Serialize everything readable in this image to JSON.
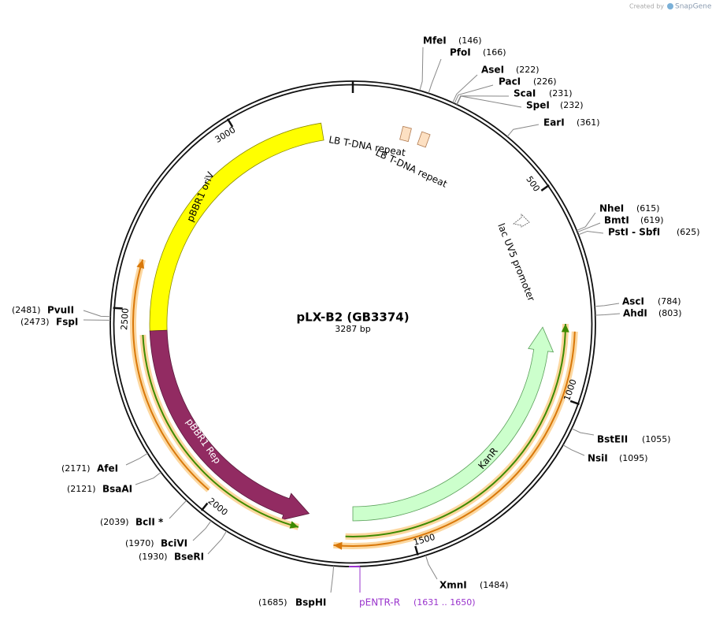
{
  "header": {
    "credit": "Created by",
    "brand": "SnapGene"
  },
  "map": {
    "title": "pLX-B2 (GB3374)",
    "length": {
      "value": 3287,
      "label": "3287 bp"
    },
    "ticks": [
      500,
      1000,
      1500,
      2000,
      2500,
      3000
    ],
    "sites": [
      {
        "name": "MfeI",
        "site": {
          "value": 146,
          "label": "(146)"
        }
      },
      {
        "name": "PfoI",
        "site": {
          "value": 166,
          "label": "(166)"
        }
      },
      {
        "name": "AseI",
        "site": {
          "value": 222,
          "label": "(222)"
        }
      },
      {
        "name": "PacI",
        "site": {
          "value": 226,
          "label": "(226)"
        }
      },
      {
        "name": "ScaI",
        "site": {
          "value": 231,
          "label": "(231)"
        }
      },
      {
        "name": "SpeI",
        "site": {
          "value": 232,
          "label": "(232)"
        }
      },
      {
        "name": "EarI",
        "site": {
          "value": 361,
          "label": "(361)"
        }
      },
      {
        "name": "NheI",
        "site": {
          "value": 615,
          "label": "(615)"
        }
      },
      {
        "name": "BmtI",
        "site": {
          "value": 619,
          "label": "(619)"
        }
      },
      {
        "name": "PstI - SbfI",
        "site": {
          "value": 625,
          "label": "(625)"
        }
      },
      {
        "name": "AscI",
        "site": {
          "value": 784,
          "label": "(784)"
        }
      },
      {
        "name": "AhdI",
        "site": {
          "value": 803,
          "label": "(803)"
        }
      },
      {
        "name": "BstEII",
        "site": {
          "value": 1055,
          "label": "(1055)"
        }
      },
      {
        "name": "NsiI",
        "site": {
          "value": 1095,
          "label": "(1095)"
        }
      },
      {
        "name": "XmnI",
        "site": {
          "value": 1484,
          "label": "(1484)"
        }
      },
      {
        "name": "BspHI",
        "site": {
          "value": 1685,
          "label": "(1685)"
        }
      },
      {
        "name": "BseRI",
        "site": {
          "value": 1930,
          "label": "(1930)"
        }
      },
      {
        "name": "BciVI",
        "site": {
          "value": 1970,
          "label": "(1970)"
        }
      },
      {
        "name": "BclI *",
        "site": {
          "value": 2039,
          "label": "(2039)"
        }
      },
      {
        "name": "BsaAI",
        "site": {
          "value": 2121,
          "label": "(2121)"
        }
      },
      {
        "name": "AfeI",
        "site": {
          "value": 2171,
          "label": "(2171)"
        }
      },
      {
        "name": "FspI",
        "site": {
          "value": 2473,
          "label": "(2473)"
        }
      },
      {
        "name": "PvuII",
        "site": {
          "value": 2481,
          "label": "(2481)"
        }
      }
    ],
    "features": [
      {
        "label": "pBBR1 oriV"
      },
      {
        "label": "pBBR1 Rep"
      },
      {
        "label": "KanR"
      },
      {
        "label": "LB T-DNA repeat"
      },
      {
        "label": "LB T-DNA repeat"
      },
      {
        "label": "lac UV5 promoter"
      }
    ],
    "primer": {
      "label": "pENTR-R",
      "range": "(1631 .. 1650)"
    }
  }
}
